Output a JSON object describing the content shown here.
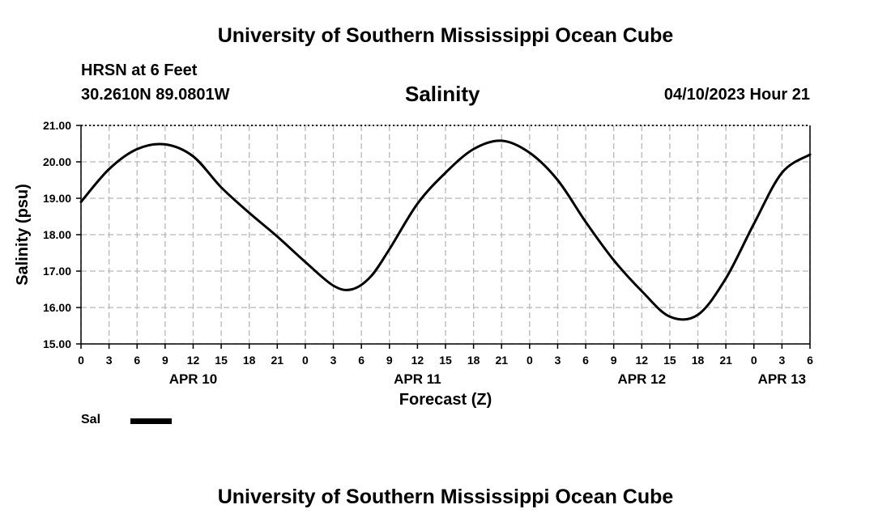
{
  "header": {
    "title": "University of Southern Mississippi Ocean Cube",
    "station": "HRSN at 6 Feet",
    "coords": "30.2610N  89.0801W",
    "variable": "Salinity",
    "datetime": "04/10/2023 Hour 21"
  },
  "footer": {
    "title": "University of Southern Mississippi Ocean Cube"
  },
  "legend": {
    "label": "Sal",
    "color": "#000000"
  },
  "chart_data": {
    "type": "line",
    "xlabel": "Forecast (Z)",
    "ylabel": "Salinity (psu)",
    "xlim": [
      0,
      78
    ],
    "ylim": [
      15,
      21
    ],
    "yticks": [
      "15.00",
      "16.00",
      "17.00",
      "18.00",
      "19.00",
      "20.00",
      "21.00"
    ],
    "xtick_labels": [
      "0",
      "3",
      "6",
      "9",
      "12",
      "15",
      "18",
      "21",
      "0",
      "3",
      "6",
      "9",
      "12",
      "15",
      "18",
      "21",
      "0",
      "3",
      "6",
      "9",
      "12",
      "15",
      "18",
      "21",
      "0",
      "3",
      "6"
    ],
    "day_labels": [
      {
        "label": "APR 10",
        "hour": 12
      },
      {
        "label": "APR 11",
        "hour": 36
      },
      {
        "label": "APR 12",
        "hour": 60
      },
      {
        "label": "APR 13",
        "hour": 75
      }
    ],
    "grid": true,
    "series": [
      {
        "name": "Sal",
        "x": [
          0,
          3,
          6,
          9,
          12,
          15,
          18,
          21,
          24,
          27,
          29,
          31,
          33,
          36,
          39,
          42,
          45,
          48,
          51,
          54,
          57,
          60,
          63,
          66,
          69,
          72,
          75,
          78
        ],
        "y": [
          18.9,
          19.8,
          20.35,
          20.48,
          20.15,
          19.3,
          18.6,
          17.95,
          17.25,
          16.6,
          16.5,
          16.85,
          17.6,
          18.85,
          19.7,
          20.35,
          20.58,
          20.25,
          19.5,
          18.35,
          17.3,
          16.45,
          15.75,
          15.8,
          16.8,
          18.3,
          19.7,
          20.2
        ]
      }
    ]
  }
}
